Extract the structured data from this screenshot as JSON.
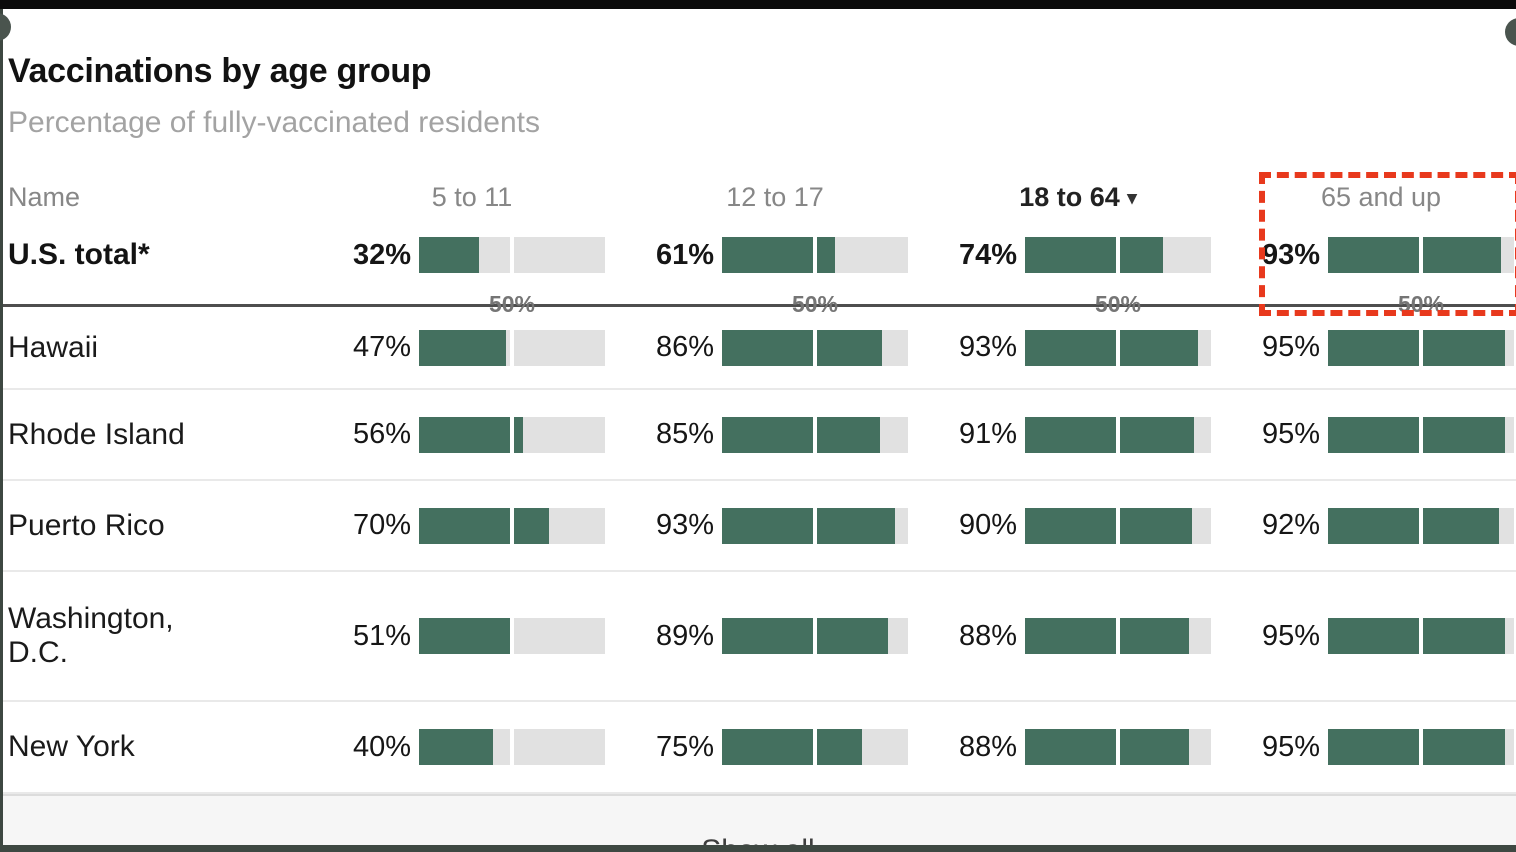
{
  "chart_data": {
    "type": "table",
    "title": "Vaccinations by age group",
    "subtitle": "Percentage of fully-vaccinated residents",
    "axis_max": 100,
    "midpoint_tick_label": "50%",
    "columns": {
      "name": "Name",
      "groups": [
        {
          "label": "5 to 11",
          "active": false
        },
        {
          "label": "12 to 17",
          "active": false
        },
        {
          "label": "18 to 64",
          "active": true,
          "sort_caret": "▾"
        },
        {
          "label": "65 and up",
          "active": false,
          "highlighted": true
        }
      ]
    },
    "rows": [
      {
        "name": "U.S. total*",
        "is_total": true,
        "values": [
          "32%",
          "61%",
          "74%",
          "93%"
        ],
        "pct": [
          32,
          61,
          74,
          93
        ]
      },
      {
        "name": "Hawaii",
        "values": [
          "47%",
          "86%",
          "93%",
          "95%"
        ],
        "pct": [
          47,
          86,
          93,
          95
        ]
      },
      {
        "name": "Rhode Island",
        "values": [
          "56%",
          "85%",
          "91%",
          "95%"
        ],
        "pct": [
          56,
          85,
          91,
          95
        ]
      },
      {
        "name": "Washington,\nD.C.",
        "display_order_note": "",
        "values": [
          "51%",
          "89%",
          "88%",
          "95%"
        ],
        "pct": [
          51,
          89,
          88,
          95
        ]
      },
      {
        "name": "New York",
        "values": [
          "40%",
          "75%",
          "88%",
          "95%"
        ],
        "pct": [
          40,
          75,
          88,
          95
        ]
      }
    ],
    "rows_order": [
      "U.S. total*",
      "Hawaii",
      "Rhode Island",
      "Puerto Rico",
      "Washington,\nD.C.",
      "New York"
    ],
    "extra_row": {
      "name": "Puerto Rico",
      "values": [
        "70%",
        "93%",
        "90%",
        "92%"
      ],
      "pct": [
        70,
        93,
        90,
        92
      ]
    },
    "footer_button": "Show all",
    "colors": {
      "bar_fill": "#44705f",
      "bar_track": "#e1e1e1",
      "highlight_red": "#e8391d",
      "rule_dark": "#4e4e4e"
    }
  }
}
